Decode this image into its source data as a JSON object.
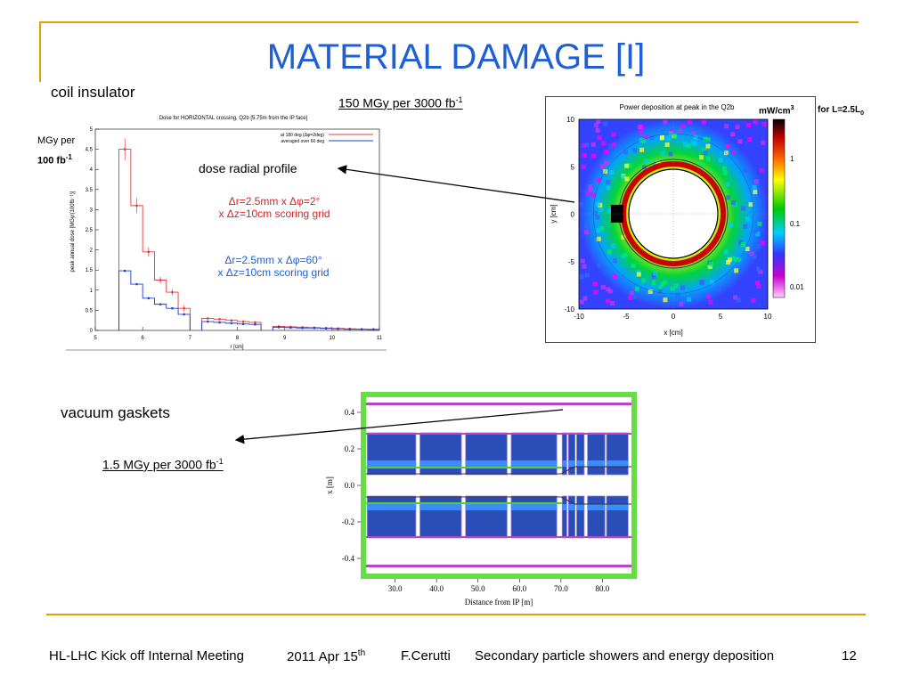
{
  "slide": {
    "title": "MATERIAL DAMAGE [I]",
    "page_number": "12",
    "accent_color": "#e0a000",
    "title_color": "#1f5fd6"
  },
  "labels": {
    "coil_insulator": "coil insulator",
    "mgy_per": "MGy per",
    "per100": "100 fb",
    "per100_sup": "-1",
    "dose150": "150 MGy per 3000 fb",
    "dose150_sup": "-1",
    "dose_radial_profile": "dose radial profile",
    "red_note_1": "Δr=2.5mm x Δφ=2°",
    "red_note_2": "x Δz=10cm  scoring grid",
    "blue_note_1": "Δr=2.5mm x Δφ=60°",
    "blue_note_2": "x Δz=10cm  scoring grid",
    "mw_cm3": "mW/cm",
    "mw_cm3_sup": "3",
    "for_L": "for L=2.5L",
    "for_L_sub": "0",
    "vacuum_gaskets": "vacuum gaskets",
    "dose15": "1.5 MGy per 3000 fb",
    "dose15_sup": "-1"
  },
  "footer": {
    "meeting": "HL-LHC Kick off Internal Meeting",
    "date": "2011 Apr 15",
    "date_sup": "th",
    "author": "F.Cerutti",
    "topic": "Secondary particle showers and energy deposition"
  },
  "chart_data": [
    {
      "type": "bar",
      "title": "Dose for HORIZONTAL crossing, Q2b [5.75m from the IP face]",
      "xlabel": "r [cm]",
      "ylabel": "peak annual dose [MGy/(100fb⁻¹)]",
      "xlim": [
        5,
        11
      ],
      "ylim": [
        0,
        5
      ],
      "xticks": [
        "5",
        "6",
        "7",
        "8",
        "9",
        "10",
        "11"
      ],
      "yticks": [
        "0",
        "0.5",
        "1",
        "1.5",
        "2",
        "2.5",
        "3",
        "3.5",
        "4",
        "4.5",
        "5"
      ],
      "legend_position": "top-right",
      "series": [
        {
          "name": "at 180 deg (Δφ=2deg)",
          "color": "#e83a3a",
          "bins": [
            [
              5.5,
              5.75,
              4.5
            ],
            [
              5.75,
              6.0,
              3.1
            ],
            [
              6.0,
              6.25,
              1.95
            ],
            [
              6.25,
              6.5,
              1.25
            ],
            [
              6.5,
              6.75,
              0.95
            ],
            [
              6.75,
              7.0,
              0.55
            ],
            [
              7.25,
              7.5,
              0.3
            ],
            [
              7.5,
              7.75,
              0.28
            ],
            [
              7.75,
              8.0,
              0.25
            ],
            [
              8.0,
              8.25,
              0.22
            ],
            [
              8.25,
              8.5,
              0.2
            ],
            [
              8.75,
              9.0,
              0.1
            ],
            [
              9.0,
              9.25,
              0.09
            ],
            [
              9.25,
              9.5,
              0.08
            ],
            [
              9.5,
              9.75,
              0.07
            ],
            [
              9.75,
              10.0,
              0.06
            ],
            [
              10.0,
              10.25,
              0.05
            ],
            [
              10.25,
              10.5,
              0.04
            ],
            [
              10.5,
              10.75,
              0.03
            ],
            [
              10.75,
              11.0,
              0.03
            ]
          ]
        },
        {
          "name": "averaged over 60 deg",
          "color": "#1f3fd6",
          "bins": [
            [
              5.5,
              5.75,
              1.48
            ],
            [
              5.75,
              6.0,
              1.15
            ],
            [
              6.0,
              6.25,
              0.8
            ],
            [
              6.25,
              6.5,
              0.65
            ],
            [
              6.5,
              6.75,
              0.55
            ],
            [
              6.75,
              7.0,
              0.4
            ],
            [
              7.25,
              7.5,
              0.22
            ],
            [
              7.5,
              7.75,
              0.2
            ],
            [
              7.75,
              8.0,
              0.18
            ],
            [
              8.0,
              8.25,
              0.16
            ],
            [
              8.25,
              8.5,
              0.15
            ],
            [
              8.75,
              9.0,
              0.08
            ],
            [
              9.0,
              9.25,
              0.07
            ],
            [
              9.25,
              9.5,
              0.06
            ],
            [
              9.5,
              9.75,
              0.06
            ],
            [
              9.75,
              10.0,
              0.05
            ],
            [
              10.0,
              10.25,
              0.04
            ],
            [
              10.25,
              10.5,
              0.03
            ],
            [
              10.5,
              10.75,
              0.03
            ],
            [
              10.75,
              11.0,
              0.02
            ]
          ]
        }
      ]
    },
    {
      "type": "heatmap",
      "title": "Power deposition at peak in the Q2b",
      "xlabel": "x [cm]",
      "ylabel": "y [cm]",
      "xlim": [
        -10,
        10
      ],
      "ylim": [
        -10,
        10
      ],
      "xticks": [
        "-10",
        "-5",
        "0",
        "5",
        "10"
      ],
      "yticks": [
        "10",
        "5",
        "0",
        "-5",
        "-10"
      ],
      "colorbar_ticks": [
        "1",
        "0.1",
        "0.01"
      ]
    },
    {
      "type": "heatmap",
      "xlabel": "Distance from IP [m]",
      "ylabel": "x [m]",
      "xlim": [
        23,
        87
      ],
      "ylim": [
        -0.45,
        0.45
      ],
      "xticks": [
        "30.0",
        "40.0",
        "50.0",
        "60.0",
        "70.0",
        "80.0"
      ],
      "yticks": [
        "0.4",
        "0.2",
        "0.0",
        "-0.2",
        "-0.4"
      ]
    }
  ]
}
